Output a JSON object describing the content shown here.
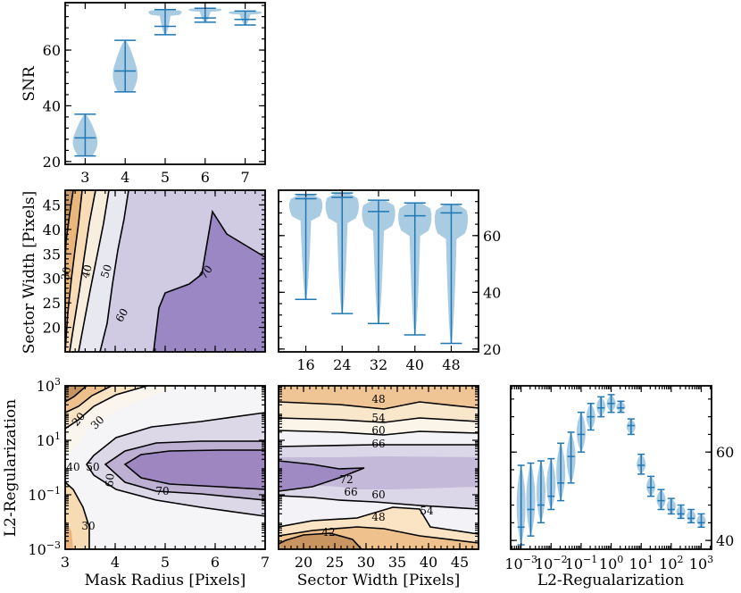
{
  "colors": {
    "violin_fill": "#a9cce3",
    "violin_line": "#1f77b4",
    "contour_low": "#b07840",
    "contour_mid": "#f7f7f7",
    "contour_high": "#7d5ba6",
    "contour_line": "#000000",
    "frame": "#000000"
  },
  "chart_data": [
    {
      "id": "snr-vs-mask-radius",
      "type": "violin",
      "xlabel": "",
      "ylabel": "SNR",
      "x_ticks": [
        "3",
        "4",
        "5",
        "6",
        "7"
      ],
      "y_ticks": [
        "20",
        "40",
        "60"
      ],
      "ylim": [
        19,
        77
      ],
      "categories": [
        3,
        4,
        5,
        6,
        7
      ],
      "values": [
        {
          "min": 22,
          "median": 28.5,
          "max": 37
        },
        {
          "min": 45,
          "median": 52.5,
          "max": 63.5
        },
        {
          "min": 65.5,
          "median": 68.5,
          "max": 74.5
        },
        {
          "min": 70,
          "median": 71.5,
          "max": 75
        },
        {
          "min": 69,
          "median": 71,
          "max": 74
        }
      ]
    },
    {
      "id": "sector-width-vs-mask-radius",
      "type": "contour",
      "xlabel": "",
      "ylabel": "Sector Width [Pixels]",
      "x_ticks": [],
      "y_ticks": [
        "20",
        "25",
        "30",
        "35",
        "40",
        "45"
      ],
      "xlim": [
        3,
        7
      ],
      "ylim": [
        15,
        48
      ],
      "levels": [
        30,
        40,
        50,
        60,
        70
      ],
      "contour_labels": [
        "30",
        "40",
        "50",
        "60",
        "70"
      ]
    },
    {
      "id": "snr-vs-sector-width",
      "type": "violin",
      "xlabel": "",
      "ylabel": "",
      "x_ticks": [
        "16",
        "24",
        "32",
        "40",
        "48"
      ],
      "y_ticks": [
        "20",
        "40",
        "60"
      ],
      "ylim": [
        19,
        76
      ],
      "categories": [
        16,
        24,
        32,
        40,
        48
      ],
      "values": [
        {
          "min": 37.5,
          "median": 73,
          "max": 74.5
        },
        {
          "min": 32.5,
          "median": 73.5,
          "max": 75
        },
        {
          "min": 29,
          "median": 68.5,
          "max": 72.5
        },
        {
          "min": 25,
          "median": 67,
          "max": 71.5
        },
        {
          "min": 22,
          "median": 68,
          "max": 71
        }
      ]
    },
    {
      "id": "l2-vs-mask-radius",
      "type": "contour",
      "xlabel": "Mask Radius [Pixels]",
      "ylabel": "L2-Regularization",
      "x_ticks": [
        "3",
        "4",
        "5",
        "6",
        "7"
      ],
      "y_ticks": [
        "10^-3",
        "10^-1",
        "10^1",
        "10^3"
      ],
      "xlim": [
        3,
        7
      ],
      "ylog": true,
      "ylim": [
        0.001,
        1000
      ],
      "levels": [
        20,
        30,
        40,
        50,
        60,
        70
      ],
      "contour_labels": [
        "20",
        "30",
        "40",
        "50",
        "60",
        "70",
        "30"
      ]
    },
    {
      "id": "l2-vs-sector-width",
      "type": "contour",
      "xlabel": "Sector Width [Pixels]",
      "ylabel": "",
      "x_ticks": [
        "20",
        "25",
        "30",
        "35",
        "40",
        "45"
      ],
      "y_ticks": [],
      "xlim": [
        16,
        48
      ],
      "ylog": true,
      "ylim": [
        0.001,
        1000
      ],
      "levels": [
        42,
        48,
        54,
        60,
        66,
        72
      ],
      "contour_labels": [
        "48",
        "54",
        "60",
        "66",
        "72",
        "66",
        "60",
        "54",
        "48",
        "42"
      ]
    },
    {
      "id": "snr-vs-l2-regularization",
      "type": "violin",
      "xlabel": "L2-Regualarization",
      "ylabel": "",
      "xlog": true,
      "x_ticks": [
        "10^-3",
        "10^-2",
        "10^-1",
        "10^0",
        "10^1",
        "10^2",
        "10^3"
      ],
      "y_ticks": [
        "40",
        "60"
      ],
      "ylim": [
        38,
        75
      ],
      "categories": [
        0.001,
        0.0021,
        0.0046,
        0.01,
        0.021,
        0.046,
        0.1,
        0.21,
        0.46,
        1,
        2.1,
        4.6,
        10,
        21,
        46,
        100,
        210,
        460,
        1000
      ],
      "values": [
        {
          "min": 39,
          "median": 43,
          "max": 57
        },
        {
          "min": 41,
          "median": 47,
          "max": 57.5
        },
        {
          "min": 44,
          "median": 48,
          "max": 58
        },
        {
          "min": 47,
          "median": 50,
          "max": 58.5
        },
        {
          "min": 49,
          "median": 53,
          "max": 62
        },
        {
          "min": 53,
          "median": 59,
          "max": 64.5
        },
        {
          "min": 60,
          "median": 64,
          "max": 69
        },
        {
          "min": 65,
          "median": 68,
          "max": 71
        },
        {
          "min": 68,
          "median": 70,
          "max": 72.5
        },
        {
          "min": 69,
          "median": 71,
          "max": 73
        },
        {
          "min": 69,
          "median": 70,
          "max": 71.5
        },
        {
          "min": 64,
          "median": 66,
          "max": 67.5
        },
        {
          "min": 55,
          "median": 57,
          "max": 59.5
        },
        {
          "min": 50,
          "median": 52,
          "max": 54.5
        },
        {
          "min": 47,
          "median": 49,
          "max": 51.5
        },
        {
          "min": 46,
          "median": 47,
          "max": 49.5
        },
        {
          "min": 45,
          "median": 46,
          "max": 48
        },
        {
          "min": 44,
          "median": 45,
          "max": 47
        },
        {
          "min": 43,
          "median": 44,
          "max": 46
        }
      ]
    }
  ]
}
